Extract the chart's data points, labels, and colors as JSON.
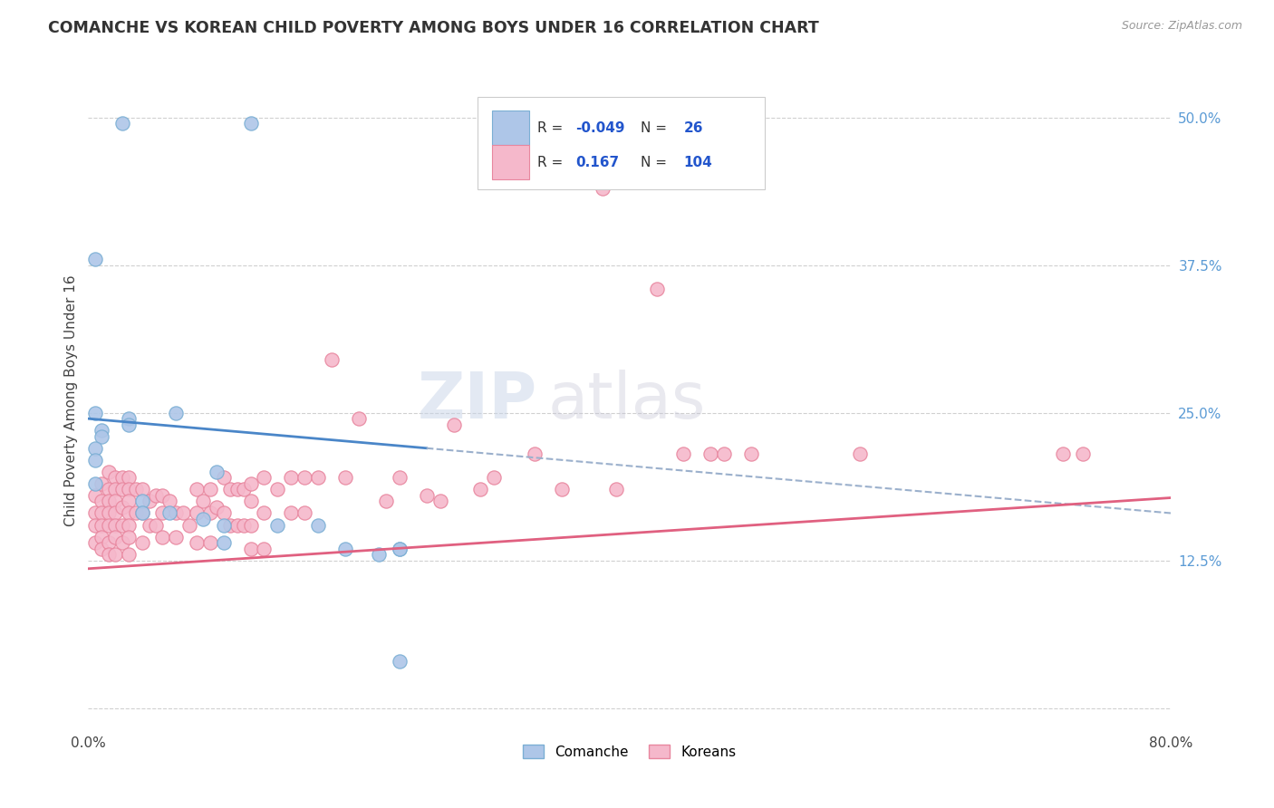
{
  "title": "COMANCHE VS KOREAN CHILD POVERTY AMONG BOYS UNDER 16 CORRELATION CHART",
  "source": "Source: ZipAtlas.com",
  "ylabel": "Child Poverty Among Boys Under 16",
  "xlim": [
    0.0,
    0.8
  ],
  "ylim": [
    -0.02,
    0.54
  ],
  "ytick_positions": [
    0.0,
    0.125,
    0.25,
    0.375,
    0.5
  ],
  "ytick_labels": [
    "",
    "12.5%",
    "25.0%",
    "37.5%",
    "50.0%"
  ],
  "xtick_positions": [
    0.0,
    0.1,
    0.2,
    0.3,
    0.4,
    0.5,
    0.6,
    0.7,
    0.8
  ],
  "xtick_labels": [
    "0.0%",
    "",
    "",
    "",
    "",
    "",
    "",
    "",
    "80.0%"
  ],
  "comanche_color": "#aec6e8",
  "korean_color": "#f5b8cb",
  "comanche_edge": "#7bafd4",
  "korean_edge": "#e8879f",
  "trend_comanche_color": "#4a86c8",
  "trend_korean_color": "#e06080",
  "trend_dashed_color": "#9bb0cc",
  "legend_R_comanche": "-0.049",
  "legend_N_comanche": "26",
  "legend_R_korean": "0.167",
  "legend_N_korean": "104",
  "background_color": "#ffffff",
  "comanche_x": [
    0.025,
    0.12,
    0.005,
    0.005,
    0.03,
    0.03,
    0.01,
    0.01,
    0.005,
    0.005,
    0.005,
    0.04,
    0.04,
    0.06,
    0.065,
    0.085,
    0.095,
    0.1,
    0.1,
    0.14,
    0.17,
    0.19,
    0.215,
    0.23,
    0.23,
    0.23
  ],
  "comanche_y": [
    0.495,
    0.495,
    0.38,
    0.25,
    0.245,
    0.24,
    0.235,
    0.23,
    0.22,
    0.21,
    0.19,
    0.175,
    0.165,
    0.165,
    0.25,
    0.16,
    0.2,
    0.155,
    0.14,
    0.155,
    0.155,
    0.135,
    0.13,
    0.135,
    0.135,
    0.04
  ],
  "korean_x": [
    0.005,
    0.005,
    0.005,
    0.005,
    0.01,
    0.01,
    0.01,
    0.01,
    0.01,
    0.01,
    0.015,
    0.015,
    0.015,
    0.015,
    0.015,
    0.015,
    0.015,
    0.02,
    0.02,
    0.02,
    0.02,
    0.02,
    0.02,
    0.02,
    0.025,
    0.025,
    0.025,
    0.025,
    0.025,
    0.03,
    0.03,
    0.03,
    0.03,
    0.03,
    0.03,
    0.03,
    0.035,
    0.035,
    0.04,
    0.04,
    0.04,
    0.045,
    0.045,
    0.05,
    0.05,
    0.055,
    0.055,
    0.055,
    0.06,
    0.065,
    0.065,
    0.07,
    0.075,
    0.08,
    0.08,
    0.08,
    0.085,
    0.09,
    0.09,
    0.09,
    0.095,
    0.1,
    0.1,
    0.105,
    0.105,
    0.11,
    0.11,
    0.115,
    0.115,
    0.12,
    0.12,
    0.12,
    0.12,
    0.13,
    0.13,
    0.13,
    0.14,
    0.15,
    0.15,
    0.16,
    0.16,
    0.17,
    0.18,
    0.19,
    0.2,
    0.22,
    0.23,
    0.25,
    0.26,
    0.27,
    0.29,
    0.3,
    0.33,
    0.35,
    0.38,
    0.39,
    0.42,
    0.44,
    0.46,
    0.47,
    0.49,
    0.57,
    0.72,
    0.735
  ],
  "korean_y": [
    0.18,
    0.165,
    0.155,
    0.14,
    0.19,
    0.175,
    0.165,
    0.155,
    0.145,
    0.135,
    0.2,
    0.185,
    0.175,
    0.165,
    0.155,
    0.14,
    0.13,
    0.195,
    0.185,
    0.175,
    0.165,
    0.155,
    0.145,
    0.13,
    0.195,
    0.185,
    0.17,
    0.155,
    0.14,
    0.195,
    0.185,
    0.175,
    0.165,
    0.155,
    0.145,
    0.13,
    0.185,
    0.165,
    0.185,
    0.165,
    0.14,
    0.175,
    0.155,
    0.18,
    0.155,
    0.18,
    0.165,
    0.145,
    0.175,
    0.165,
    0.145,
    0.165,
    0.155,
    0.185,
    0.165,
    0.14,
    0.175,
    0.185,
    0.165,
    0.14,
    0.17,
    0.195,
    0.165,
    0.185,
    0.155,
    0.185,
    0.155,
    0.185,
    0.155,
    0.19,
    0.175,
    0.155,
    0.135,
    0.195,
    0.165,
    0.135,
    0.185,
    0.195,
    0.165,
    0.195,
    0.165,
    0.195,
    0.295,
    0.195,
    0.245,
    0.175,
    0.195,
    0.18,
    0.175,
    0.24,
    0.185,
    0.195,
    0.215,
    0.185,
    0.44,
    0.185,
    0.355,
    0.215,
    0.215,
    0.215,
    0.215,
    0.215,
    0.215,
    0.215
  ]
}
